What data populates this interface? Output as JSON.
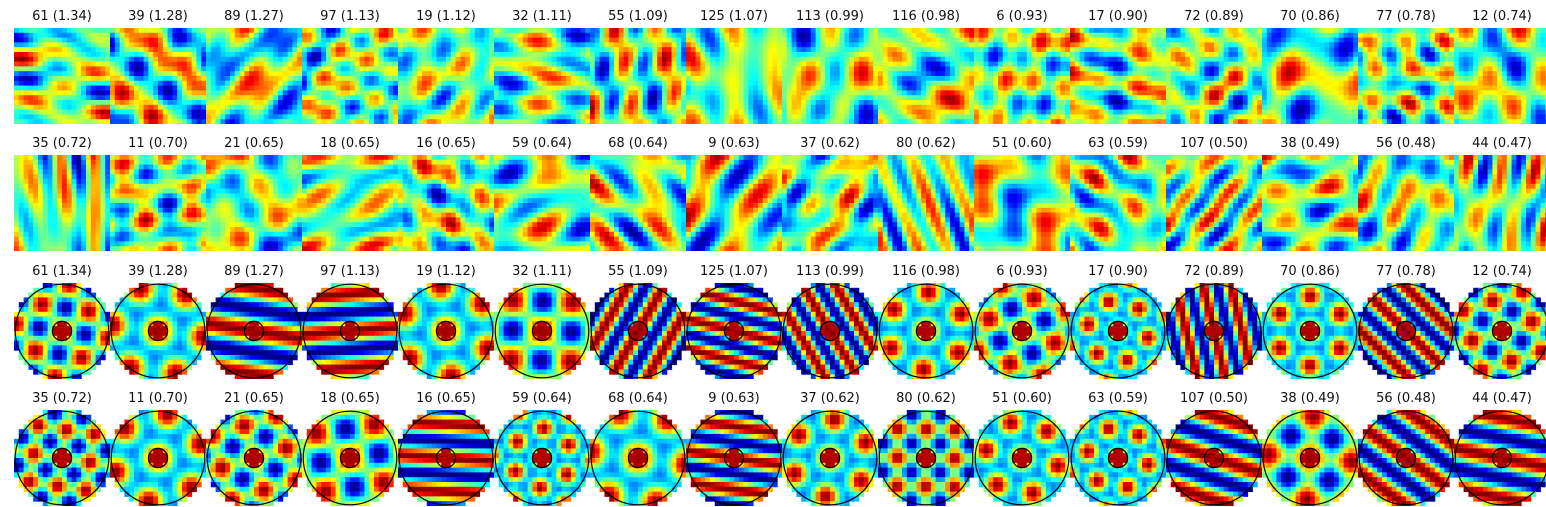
{
  "colormap": "jet",
  "rows": [
    {
      "shape": "square",
      "panels": [
        {
          "id": "61",
          "score": "1.34",
          "label": "61 (1.34)"
        },
        {
          "id": "39",
          "score": "1.28",
          "label": "39 (1.28)"
        },
        {
          "id": "89",
          "score": "1.27",
          "label": "89 (1.27)"
        },
        {
          "id": "97",
          "score": "1.13",
          "label": "97 (1.13)"
        },
        {
          "id": "19",
          "score": "1.12",
          "label": "19 (1.12)"
        },
        {
          "id": "32",
          "score": "1.11",
          "label": "32 (1.11)"
        },
        {
          "id": "55",
          "score": "1.09",
          "label": "55 (1.09)"
        },
        {
          "id": "125",
          "score": "1.07",
          "label": "125 (1.07)"
        },
        {
          "id": "113",
          "score": "0.99",
          "label": "113 (0.99)"
        },
        {
          "id": "116",
          "score": "0.98",
          "label": "116 (0.98)"
        },
        {
          "id": "6",
          "score": "0.93",
          "label": "6 (0.93)"
        },
        {
          "id": "17",
          "score": "0.90",
          "label": "17 (0.90)"
        },
        {
          "id": "72",
          "score": "0.89",
          "label": "72 (0.89)"
        },
        {
          "id": "70",
          "score": "0.86",
          "label": "70 (0.86)"
        },
        {
          "id": "77",
          "score": "0.78",
          "label": "77 (0.78)"
        },
        {
          "id": "12",
          "score": "0.74",
          "label": "12 (0.74)"
        }
      ]
    },
    {
      "shape": "square",
      "panels": [
        {
          "id": "35",
          "score": "0.72",
          "label": "35 (0.72)"
        },
        {
          "id": "11",
          "score": "0.70",
          "label": "11 (0.70)"
        },
        {
          "id": "21",
          "score": "0.65",
          "label": "21 (0.65)"
        },
        {
          "id": "18",
          "score": "0.65",
          "label": "18 (0.65)"
        },
        {
          "id": "16",
          "score": "0.65",
          "label": "16 (0.65)"
        },
        {
          "id": "59",
          "score": "0.64",
          "label": "59 (0.64)"
        },
        {
          "id": "68",
          "score": "0.64",
          "label": "68 (0.64)"
        },
        {
          "id": "9",
          "score": "0.63",
          "label": "9 (0.63)"
        },
        {
          "id": "37",
          "score": "0.62",
          "label": "37 (0.62)"
        },
        {
          "id": "80",
          "score": "0.62",
          "label": "80 (0.62)"
        },
        {
          "id": "51",
          "score": "0.60",
          "label": "51 (0.60)"
        },
        {
          "id": "63",
          "score": "0.59",
          "label": "63 (0.59)"
        },
        {
          "id": "107",
          "score": "0.50",
          "label": "107 (0.50)"
        },
        {
          "id": "38",
          "score": "0.49",
          "label": "38 (0.49)"
        },
        {
          "id": "56",
          "score": "0.48",
          "label": "56 (0.48)"
        },
        {
          "id": "44",
          "score": "0.47",
          "label": "44 (0.47)"
        }
      ]
    },
    {
      "shape": "circle",
      "panels": [
        {
          "id": "61",
          "score": "1.34",
          "label": "61 (1.34)"
        },
        {
          "id": "39",
          "score": "1.28",
          "label": "39 (1.28)"
        },
        {
          "id": "89",
          "score": "1.27",
          "label": "89 (1.27)"
        },
        {
          "id": "97",
          "score": "1.13",
          "label": "97 (1.13)"
        },
        {
          "id": "19",
          "score": "1.12",
          "label": "19 (1.12)"
        },
        {
          "id": "32",
          "score": "1.11",
          "label": "32 (1.11)"
        },
        {
          "id": "55",
          "score": "1.09",
          "label": "55 (1.09)"
        },
        {
          "id": "125",
          "score": "1.07",
          "label": "125 (1.07)"
        },
        {
          "id": "113",
          "score": "0.99",
          "label": "113 (0.99)"
        },
        {
          "id": "116",
          "score": "0.98",
          "label": "116 (0.98)"
        },
        {
          "id": "6",
          "score": "0.93",
          "label": "6 (0.93)"
        },
        {
          "id": "17",
          "score": "0.90",
          "label": "17 (0.90)"
        },
        {
          "id": "72",
          "score": "0.89",
          "label": "72 (0.89)"
        },
        {
          "id": "70",
          "score": "0.86",
          "label": "70 (0.86)"
        },
        {
          "id": "77",
          "score": "0.78",
          "label": "77 (0.78)"
        },
        {
          "id": "12",
          "score": "0.74",
          "label": "12 (0.74)"
        }
      ]
    },
    {
      "shape": "circle",
      "panels": [
        {
          "id": "35",
          "score": "0.72",
          "label": "35 (0.72)"
        },
        {
          "id": "11",
          "score": "0.70",
          "label": "11 (0.70)"
        },
        {
          "id": "21",
          "score": "0.65",
          "label": "21 (0.65)"
        },
        {
          "id": "18",
          "score": "0.65",
          "label": "18 (0.65)"
        },
        {
          "id": "16",
          "score": "0.65",
          "label": "16 (0.65)"
        },
        {
          "id": "59",
          "score": "0.64",
          "label": "59 (0.64)"
        },
        {
          "id": "68",
          "score": "0.64",
          "label": "68 (0.64)"
        },
        {
          "id": "9",
          "score": "0.63",
          "label": "9 (0.63)"
        },
        {
          "id": "37",
          "score": "0.62",
          "label": "37 (0.62)"
        },
        {
          "id": "80",
          "score": "0.62",
          "label": "80 (0.62)"
        },
        {
          "id": "51",
          "score": "0.60",
          "label": "51 (0.60)"
        },
        {
          "id": "63",
          "score": "0.59",
          "label": "63 (0.59)"
        },
        {
          "id": "107",
          "score": "0.50",
          "label": "107 (0.50)"
        },
        {
          "id": "38",
          "score": "0.49",
          "label": "38 (0.49)"
        },
        {
          "id": "56",
          "score": "0.48",
          "label": "56 (0.48)"
        },
        {
          "id": "44",
          "score": "0.47",
          "label": "44 (0.47)"
        }
      ]
    }
  ]
}
